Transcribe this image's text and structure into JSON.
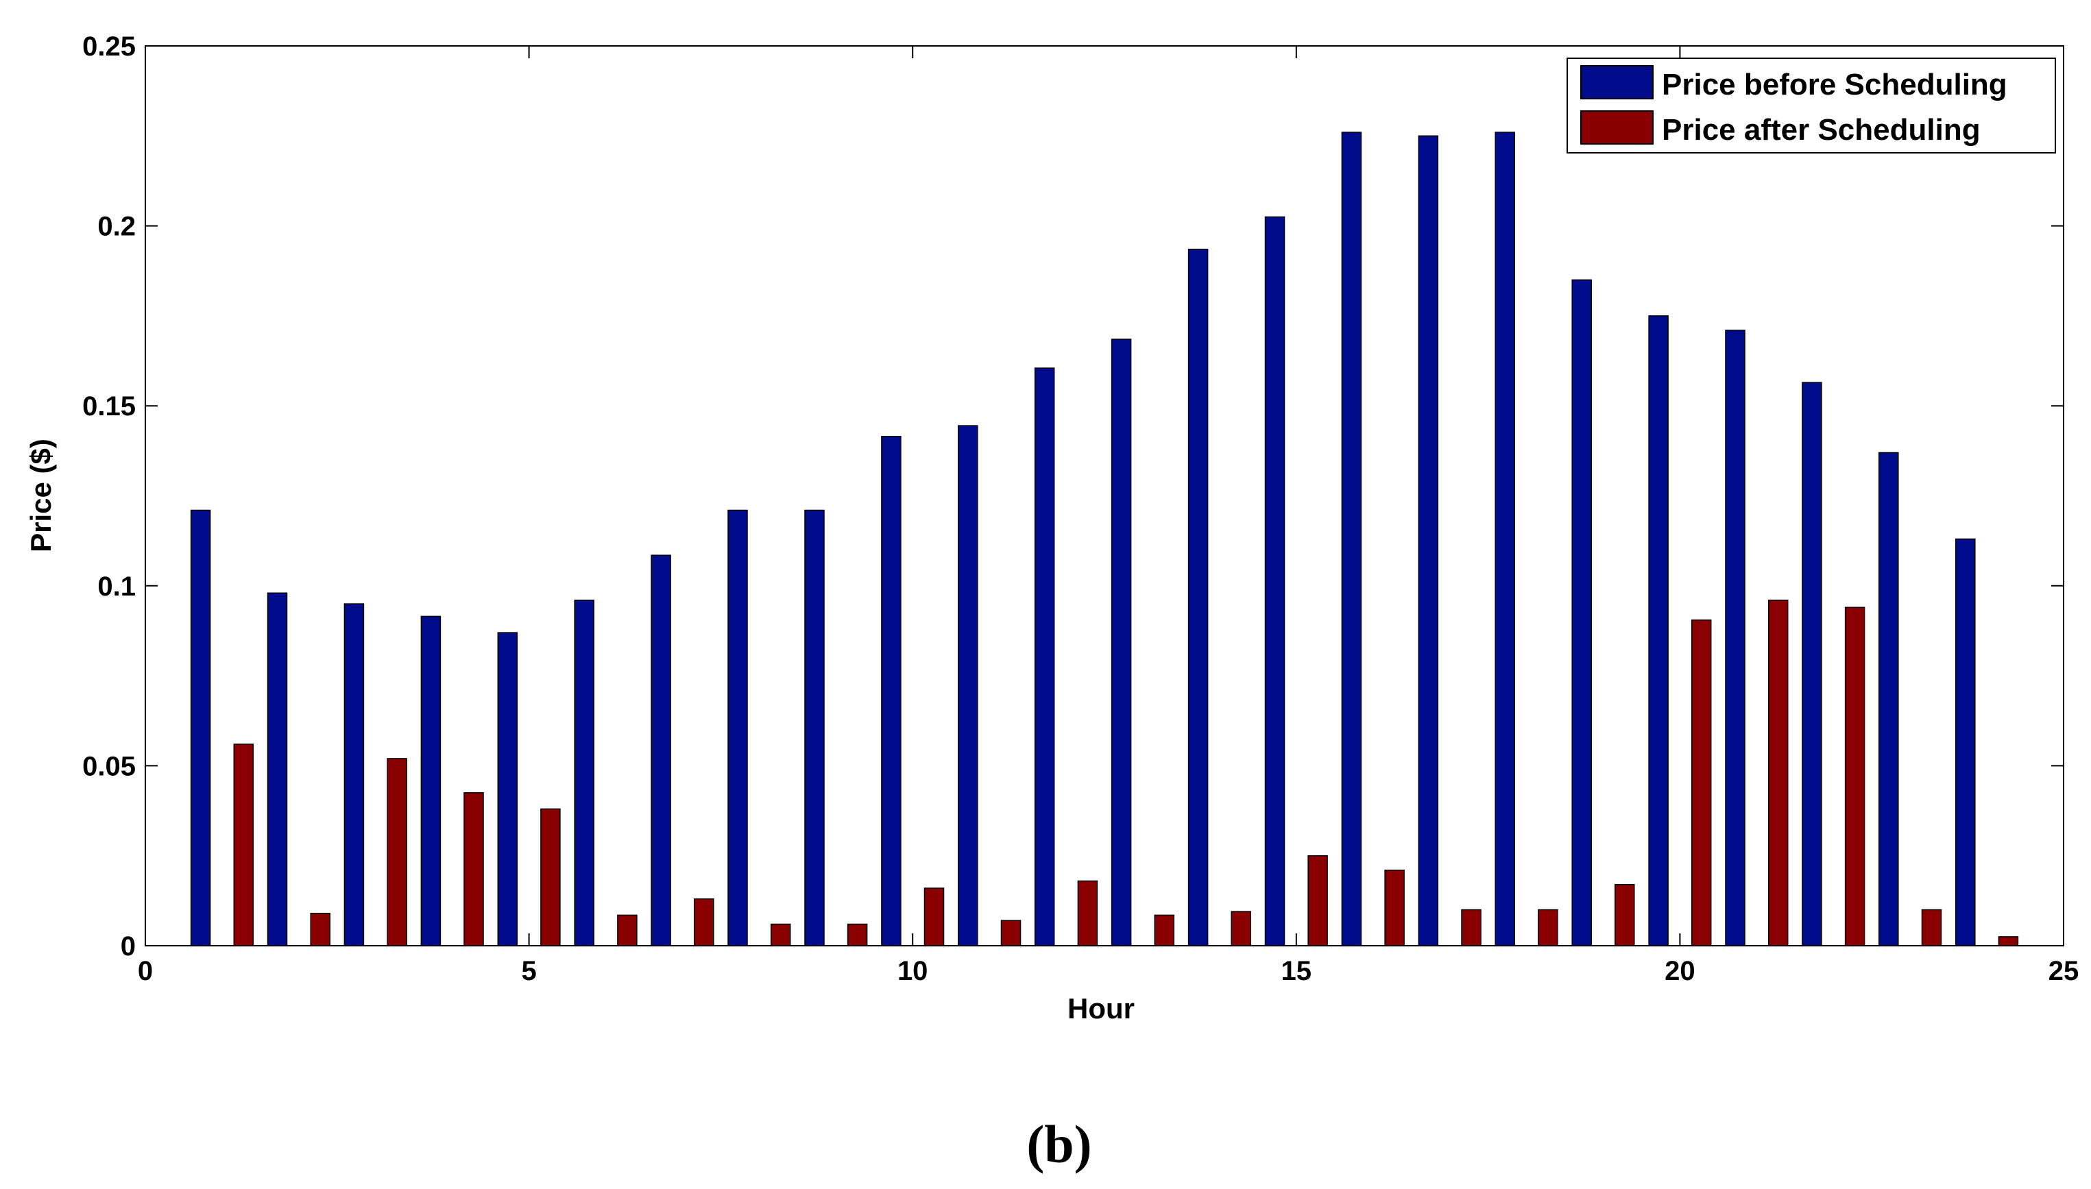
{
  "caption": "(b)",
  "chart_data": {
    "type": "bar",
    "title": "",
    "xlabel": "Hour",
    "ylabel": "Price ($)",
    "xlim": [
      0,
      25
    ],
    "ylim": [
      0,
      0.25
    ],
    "xticks": [
      0,
      5,
      10,
      15,
      20,
      25
    ],
    "xtick_labels": [
      "0",
      "5",
      "10",
      "15",
      "20",
      "25"
    ],
    "yticks": [
      0,
      0.05,
      0.1,
      0.15,
      0.2,
      0.25
    ],
    "ytick_labels": [
      "0",
      "0.05",
      "0.1",
      "0.15",
      "0.2",
      "0.25"
    ],
    "grid": false,
    "legend_position": "top-right",
    "x": [
      1,
      2,
      3,
      4,
      5,
      6,
      7,
      8,
      9,
      10,
      11,
      12,
      13,
      14,
      15,
      16,
      17,
      18,
      19,
      20,
      21,
      22,
      23,
      24
    ],
    "series": [
      {
        "name": "Price before Scheduling",
        "color": "#000c8c",
        "values": [
          0.121,
          0.098,
          0.095,
          0.0915,
          0.087,
          0.096,
          0.1085,
          0.121,
          0.121,
          0.1415,
          0.1445,
          0.1605,
          0.1685,
          0.1935,
          0.2025,
          0.226,
          0.225,
          0.226,
          0.185,
          0.175,
          0.171,
          0.1565,
          0.137,
          0.113
        ]
      },
      {
        "name": "Price after Scheduling",
        "color": "#8a0000",
        "values": [
          0.056,
          0.009,
          0.052,
          0.0425,
          0.038,
          0.0085,
          0.013,
          0.006,
          0.006,
          0.016,
          0.007,
          0.018,
          0.0085,
          0.0095,
          0.025,
          0.021,
          0.01,
          0.01,
          0.017,
          0.0905,
          0.096,
          0.094,
          0.01,
          0.0025
        ]
      }
    ]
  }
}
